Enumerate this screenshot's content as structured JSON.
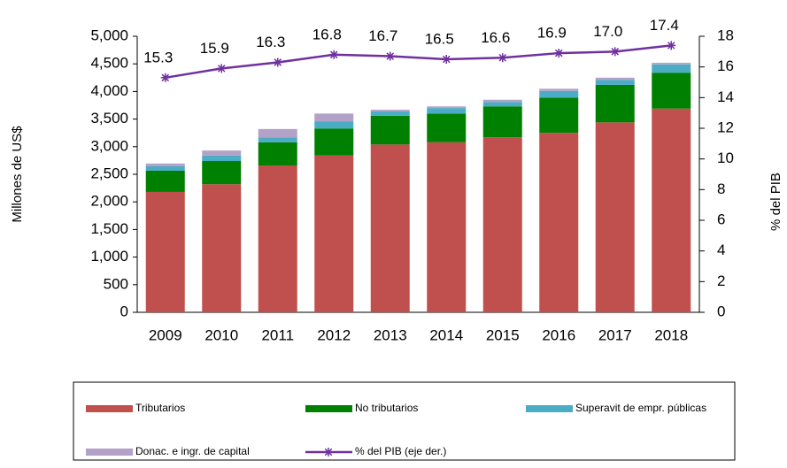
{
  "chart_data": {
    "type": "bar",
    "categories": [
      "2009",
      "2010",
      "2011",
      "2012",
      "2013",
      "2014",
      "2015",
      "2016",
      "2017",
      "2018"
    ],
    "series": [
      {
        "name": "Tributarios",
        "color": "#c0504d",
        "values": [
          2180,
          2320,
          2660,
          2840,
          3040,
          3080,
          3170,
          3250,
          3440,
          3690
        ]
      },
      {
        "name": "No tributarios",
        "color": "#008000",
        "values": [
          385,
          420,
          420,
          490,
          520,
          520,
          560,
          640,
          680,
          650
        ]
      },
      {
        "name": "Superavit de empr. públicas",
        "color": "#4bacc6",
        "values": [
          80,
          100,
          90,
          130,
          80,
          100,
          80,
          120,
          90,
          150
        ]
      },
      {
        "name": "Donac. e ingr. de capital",
        "color": "#b3a2c7",
        "values": [
          50,
          90,
          150,
          140,
          30,
          30,
          40,
          40,
          40,
          30
        ]
      },
      {
        "name": "% del PIB (eje der.)",
        "color": "#7030a0",
        "type": "line",
        "axis": "y2",
        "values": [
          15.3,
          15.9,
          16.3,
          16.8,
          16.7,
          16.5,
          16.6,
          16.9,
          17.0,
          17.4
        ],
        "value_labels": [
          "15.3",
          "15.9",
          "16.3",
          "16.8",
          "16.7",
          "16.5",
          "16.6",
          "16.9",
          "17.0",
          "17.4"
        ]
      }
    ],
    "y_label": "Millones de US$",
    "y2_label": "% del PIB",
    "ylim": [
      0,
      5000
    ],
    "yticks": [
      0,
      500,
      {
        "value": 1000,
        "label": "1,000"
      },
      {
        "value": 1500,
        "label": "1,500"
      },
      {
        "value": 2000,
        "label": "2,000"
      },
      {
        "value": 2500,
        "label": "2,500"
      },
      {
        "value": 3000,
        "label": "3,000"
      },
      {
        "value": 3500,
        "label": "3,500"
      },
      {
        "value": 4000,
        "label": "4,000"
      },
      {
        "value": 4500,
        "label": "4,500"
      },
      {
        "value": 5000,
        "label": "5,000"
      }
    ],
    "y2lim": [
      0,
      18
    ],
    "y2ticks": [
      0,
      2,
      4,
      6,
      8,
      10,
      12,
      14,
      16,
      18
    ],
    "legend": "bottom"
  }
}
